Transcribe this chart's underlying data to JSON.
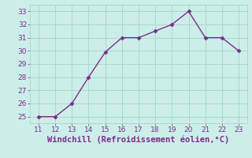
{
  "x": [
    11,
    12,
    13,
    14,
    15,
    16,
    17,
    18,
    19,
    20,
    21,
    22,
    23
  ],
  "y": [
    25,
    25,
    26,
    28,
    29.9,
    31,
    31,
    31.5,
    32,
    33,
    31,
    31,
    30
  ],
  "line_color": "#7b2d8b",
  "marker_color": "#7b2d8b",
  "bg_color": "#cceee8",
  "grid_color": "#aad8d0",
  "xlabel": "Windchill (Refroidissement éolien,°C)",
  "xlabel_color": "#7b2d8b",
  "xlim": [
    10.5,
    23.5
  ],
  "ylim": [
    24.5,
    33.5
  ],
  "xticks": [
    11,
    12,
    13,
    14,
    15,
    16,
    17,
    18,
    19,
    20,
    21,
    22,
    23
  ],
  "yticks": [
    25,
    26,
    27,
    28,
    29,
    30,
    31,
    32,
    33
  ],
  "tick_color": "#7b2d8b",
  "tick_fontsize": 6.5,
  "xlabel_fontsize": 7.5,
  "linewidth": 1.0,
  "markersize": 2.5
}
